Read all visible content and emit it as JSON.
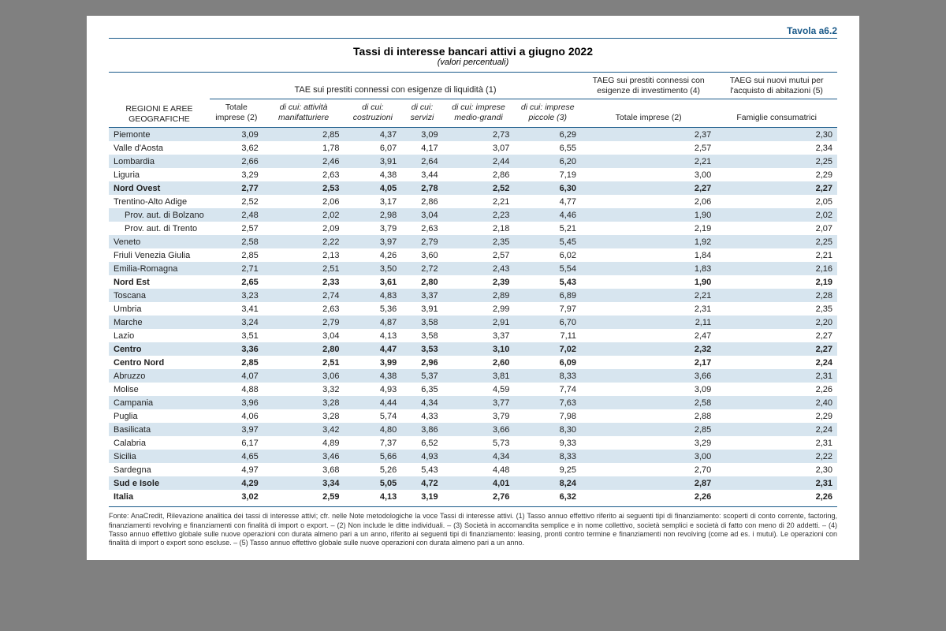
{
  "tavola": "Tavola a6.2",
  "title": "Tassi di interesse bancari attivi a giugno 2022",
  "subtitle": "(valori percentuali)",
  "header": {
    "regionLabel": "REGIONI E AREE GEOGRAFICHE",
    "group1": "TAE sui prestiti connessi con esigenze di liquidità (1)",
    "group2": "TAEG sui prestiti connessi con esigenze di investimento (4)",
    "group3": "TAEG sui nuovi mutui per l'acquisto di abitazioni (5)",
    "sub": [
      "Totale imprese (2)",
      "di cui: attività manifatturiere",
      "di cui: costruzioni",
      "di cui: servizi",
      "di cui: imprese medio-grandi",
      "di cui: imprese piccole (3)",
      "Totale imprese (2)",
      "Famiglie consumatrici"
    ]
  },
  "rows": [
    {
      "region": "Piemonte",
      "v": [
        "3,09",
        "2,85",
        "4,37",
        "3,09",
        "2,73",
        "6,29",
        "2,37",
        "2,30"
      ],
      "shade": true
    },
    {
      "region": "Valle d'Aosta",
      "v": [
        "3,62",
        "1,78",
        "6,07",
        "4,17",
        "3,07",
        "6,55",
        "2,57",
        "2,34"
      ]
    },
    {
      "region": "Lombardia",
      "v": [
        "2,66",
        "2,46",
        "3,91",
        "2,64",
        "2,44",
        "6,20",
        "2,21",
        "2,25"
      ],
      "shade": true
    },
    {
      "region": "Liguria",
      "v": [
        "3,29",
        "2,63",
        "4,38",
        "3,44",
        "2,86",
        "7,19",
        "3,00",
        "2,29"
      ]
    },
    {
      "region": "Nord Ovest",
      "v": [
        "2,77",
        "2,53",
        "4,05",
        "2,78",
        "2,52",
        "6,30",
        "2,27",
        "2,27"
      ],
      "bold": true,
      "shade": true
    },
    {
      "region": "Trentino-Alto Adige",
      "v": [
        "2,52",
        "2,06",
        "3,17",
        "2,86",
        "2,21",
        "4,77",
        "2,06",
        "2,05"
      ]
    },
    {
      "region": "Prov. aut. di Bolzano",
      "v": [
        "2,48",
        "2,02",
        "2,98",
        "3,04",
        "2,23",
        "4,46",
        "1,90",
        "2,02"
      ],
      "indent": true,
      "shade": true
    },
    {
      "region": "Prov. aut. di Trento",
      "v": [
        "2,57",
        "2,09",
        "3,79",
        "2,63",
        "2,18",
        "5,21",
        "2,19",
        "2,07"
      ],
      "indent": true
    },
    {
      "region": "Veneto",
      "v": [
        "2,58",
        "2,22",
        "3,97",
        "2,79",
        "2,35",
        "5,45",
        "1,92",
        "2,25"
      ],
      "shade": true
    },
    {
      "region": "Friuli Venezia Giulia",
      "v": [
        "2,85",
        "2,13",
        "4,26",
        "3,60",
        "2,57",
        "6,02",
        "1,84",
        "2,21"
      ]
    },
    {
      "region": "Emilia-Romagna",
      "v": [
        "2,71",
        "2,51",
        "3,50",
        "2,72",
        "2,43",
        "5,54",
        "1,83",
        "2,16"
      ],
      "shade": true
    },
    {
      "region": "Nord Est",
      "v": [
        "2,65",
        "2,33",
        "3,61",
        "2,80",
        "2,39",
        "5,43",
        "1,90",
        "2,19"
      ],
      "bold": true
    },
    {
      "region": "Toscana",
      "v": [
        "3,23",
        "2,74",
        "4,83",
        "3,37",
        "2,89",
        "6,89",
        "2,21",
        "2,28"
      ],
      "shade": true
    },
    {
      "region": "Umbria",
      "v": [
        "3,41",
        "2,63",
        "5,36",
        "3,91",
        "2,99",
        "7,97",
        "2,31",
        "2,35"
      ]
    },
    {
      "region": "Marche",
      "v": [
        "3,24",
        "2,79",
        "4,87",
        "3,58",
        "2,91",
        "6,70",
        "2,11",
        "2,20"
      ],
      "shade": true
    },
    {
      "region": "Lazio",
      "v": [
        "3,51",
        "3,04",
        "4,13",
        "3,58",
        "3,37",
        "7,11",
        "2,47",
        "2,27"
      ]
    },
    {
      "region": "Centro",
      "v": [
        "3,36",
        "2,80",
        "4,47",
        "3,53",
        "3,10",
        "7,02",
        "2,32",
        "2,27"
      ],
      "bold": true,
      "shade": true
    },
    {
      "region": "Centro Nord",
      "v": [
        "2,85",
        "2,51",
        "3,99",
        "2,96",
        "2,60",
        "6,09",
        "2,17",
        "2,24"
      ],
      "bold": true
    },
    {
      "region": "Abruzzo",
      "v": [
        "4,07",
        "3,06",
        "4,38",
        "5,37",
        "3,81",
        "8,33",
        "3,66",
        "2,31"
      ],
      "shade": true
    },
    {
      "region": "Molise",
      "v": [
        "4,88",
        "3,32",
        "4,93",
        "6,35",
        "4,59",
        "7,74",
        "3,09",
        "2,26"
      ]
    },
    {
      "region": "Campania",
      "v": [
        "3,96",
        "3,28",
        "4,44",
        "4,34",
        "3,77",
        "7,63",
        "2,58",
        "2,40"
      ],
      "shade": true
    },
    {
      "region": "Puglia",
      "v": [
        "4,06",
        "3,28",
        "5,74",
        "4,33",
        "3,79",
        "7,98",
        "2,88",
        "2,29"
      ]
    },
    {
      "region": "Basilicata",
      "v": [
        "3,97",
        "3,42",
        "4,80",
        "3,86",
        "3,66",
        "8,30",
        "2,85",
        "2,24"
      ],
      "shade": true
    },
    {
      "region": "Calabria",
      "v": [
        "6,17",
        "4,89",
        "7,37",
        "6,52",
        "5,73",
        "9,33",
        "3,29",
        "2,31"
      ]
    },
    {
      "region": "Sicilia",
      "v": [
        "4,65",
        "3,46",
        "5,66",
        "4,93",
        "4,34",
        "8,33",
        "3,00",
        "2,22"
      ],
      "shade": true
    },
    {
      "region": "Sardegna",
      "v": [
        "4,97",
        "3,68",
        "5,26",
        "5,43",
        "4,48",
        "9,25",
        "2,70",
        "2,30"
      ]
    },
    {
      "region": "Sud e Isole",
      "v": [
        "4,29",
        "3,34",
        "5,05",
        "4,72",
        "4,01",
        "8,24",
        "2,87",
        "2,31"
      ],
      "bold": true,
      "shade": true
    },
    {
      "region": "Italia",
      "v": [
        "3,02",
        "2,59",
        "4,13",
        "3,19",
        "2,76",
        "6,32",
        "2,26",
        "2,26"
      ],
      "bold": true
    }
  ],
  "footnotes": "Fonte: AnaCredit, Rilevazione analitica dei tassi di interesse attivi; cfr. nelle Note metodologiche la voce Tassi di interesse attivi.\n(1) Tasso annuo effettivo riferito ai seguenti tipi di finanziamento: scoperti di conto corrente, factoring, finanziamenti revolving e finanziamenti con finalità di import o export. – (2) Non include le ditte individuali. – (3) Società in accomandita semplice e in nome collettivo, società semplici e società di fatto con meno di 20 addetti. – (4) Tasso annuo effettivo globale sulle nuove operazioni con durata almeno pari a un anno, riferito ai seguenti tipi di finanziamento: leasing, pronti contro termine e finanziamenti non revolving (come ad es. i mutui). Le operazioni con finalità di import o export sono escluse. – (5) Tasso annuo effettivo globale sulle nuove operazioni con durata almeno pari a un anno.",
  "colors": {
    "pageBg": "#808080",
    "paper": "#ffffff",
    "accent": "#1a5a8a",
    "shade": "#d7e5ef"
  }
}
